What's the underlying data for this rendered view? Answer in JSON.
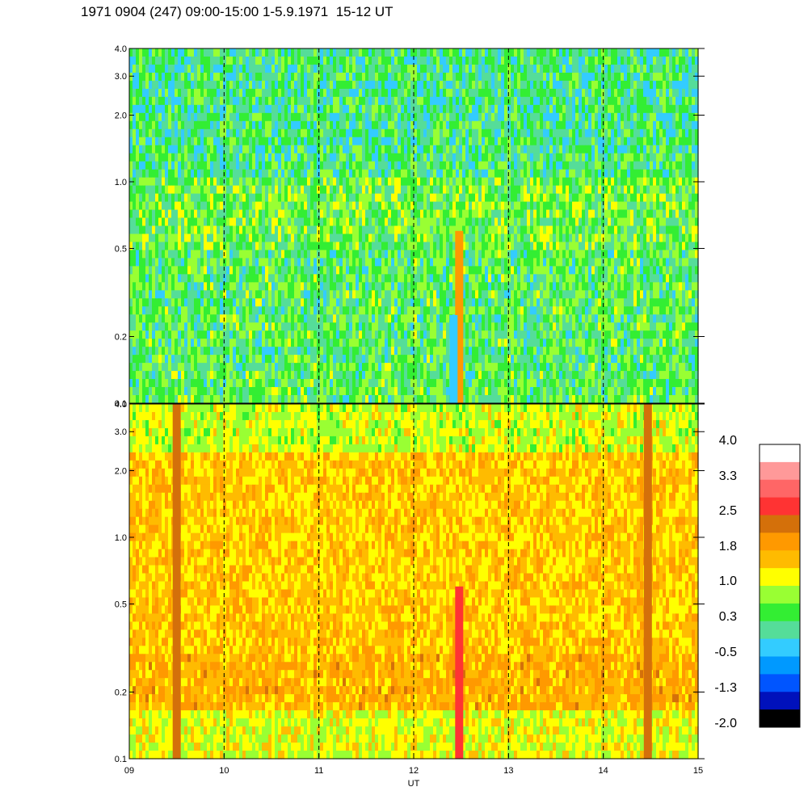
{
  "title": "1971 0904 (247) 09:00-15:00 1-5.9.1971  15-12 UT",
  "chart_data": [
    {
      "type": "heatmap",
      "panel": "top",
      "description_source": "dynamic spectrum, upper panel",
      "x": {
        "label": "",
        "range": [
          9,
          15
        ]
      },
      "y": {
        "label": "",
        "range": [
          0.1,
          4.0
        ],
        "scale": "log",
        "ticks": [
          "0.1",
          "0.2",
          "0.5",
          "1.0",
          "2.0",
          "3.0",
          "4.0"
        ],
        "tick_values": [
          0.1,
          0.2,
          0.5,
          1.0,
          2.0,
          3.0,
          4.0
        ]
      },
      "dashed_gridlines_x": [
        10,
        11,
        12,
        13,
        14
      ],
      "dominant_levels": [
        0.3,
        0.7,
        -0.5
      ],
      "features": [
        {
          "x": 12.48,
          "y_range": [
            0.1,
            0.6
          ],
          "level": 1.8
        },
        {
          "x": 12.42,
          "y_range": [
            0.1,
            0.25
          ],
          "level": -0.5
        }
      ]
    },
    {
      "type": "heatmap",
      "panel": "bottom",
      "x": {
        "label": "UT",
        "range": [
          9,
          15
        ],
        "ticks": [
          "09",
          "10",
          "11",
          "12",
          "13",
          "14",
          "15"
        ],
        "tick_values": [
          9,
          10,
          11,
          12,
          13,
          14,
          15
        ]
      },
      "y": {
        "label": "",
        "range": [
          0.1,
          4.0
        ],
        "scale": "log",
        "ticks": [
          "0.1",
          "0.2",
          "0.5",
          "1.0",
          "2.0",
          "3.0",
          "4.0"
        ],
        "tick_values": [
          0.1,
          0.2,
          0.5,
          1.0,
          2.0,
          3.0,
          4.0
        ]
      },
      "dashed_gridlines_x": [
        10,
        11,
        12,
        13,
        14
      ],
      "dominant_levels": [
        1.3,
        1.6,
        1.0
      ],
      "features": [
        {
          "x": 12.48,
          "y_range": [
            0.1,
            0.6
          ],
          "level": 2.6
        },
        {
          "x": 9.5,
          "y_range": [
            0.1,
            4.0
          ],
          "level": 2.4
        },
        {
          "x": 14.47,
          "y_range": [
            0.1,
            4.0
          ],
          "level": 2.4
        }
      ]
    }
  ],
  "colorbar": {
    "labels": [
      "4.0",
      "3.3",
      "2.5",
      "1.8",
      "1.0",
      "0.3",
      "-0.5",
      "-1.3",
      "-2.0"
    ],
    "colors": [
      "#ffffff",
      "#ff9999",
      "#ff6666",
      "#ff3333",
      "#d4700a",
      "#ff9900",
      "#ffbb00",
      "#ffff00",
      "#99ff33",
      "#33ee33",
      "#55dd99",
      "#33ccff",
      "#0099ff",
      "#0055ff",
      "#0011bb",
      "#000000"
    ]
  }
}
